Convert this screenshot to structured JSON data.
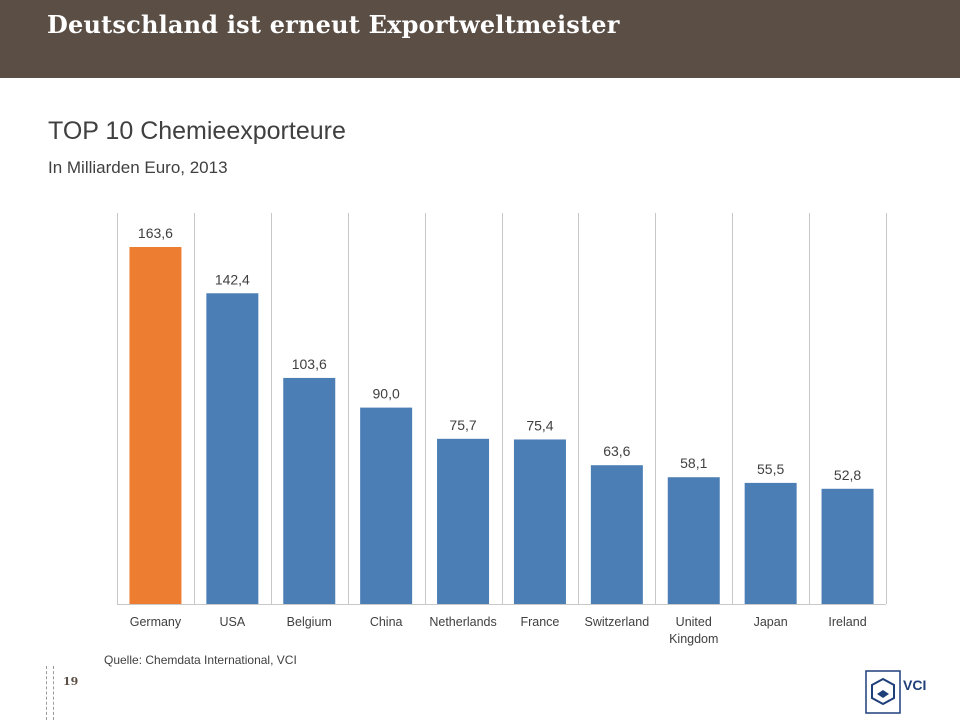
{
  "header": {
    "title": "Deutschland ist erneut Exportweltmeister"
  },
  "chart_data": {
    "type": "bar",
    "title": "TOP 10 Chemieexporteure",
    "subtitle": "In Milliarden Euro, 2013",
    "categories": [
      "Germany",
      "USA",
      "Belgium",
      "China",
      "Netherlands",
      "France",
      "Switzerland",
      "United Kingdom",
      "Japan",
      "Ireland"
    ],
    "category_label_lines": [
      [
        "Germany"
      ],
      [
        "USA"
      ],
      [
        "Belgium"
      ],
      [
        "China"
      ],
      [
        "Netherlands"
      ],
      [
        "France"
      ],
      [
        "Switzerland"
      ],
      [
        "United",
        "Kingdom"
      ],
      [
        "Japan"
      ],
      [
        "Ireland"
      ]
    ],
    "values": [
      163.6,
      142.4,
      103.6,
      90.0,
      75.7,
      75.4,
      63.6,
      58.1,
      55.5,
      52.8
    ],
    "value_labels": [
      "163,6",
      "142,4",
      "103,6",
      "90,0",
      "75,7",
      "75,4",
      "63,6",
      "58,1",
      "55,5",
      "52,8"
    ],
    "highlight_index": 0,
    "colors": {
      "highlight": "#ed7d31",
      "default": "#4a7eb5",
      "separator": "#c8c8c8",
      "label": "#404040"
    },
    "ylim": [
      0,
      170
    ],
    "grid": "vertical separators between categories",
    "legend": "none"
  },
  "footer": {
    "source": "Quelle: Chemdata International, VCI",
    "page_number": "19",
    "logo_text": "VCI"
  },
  "theme": {
    "header_bg": "#5a4e45",
    "text": "#404040"
  }
}
